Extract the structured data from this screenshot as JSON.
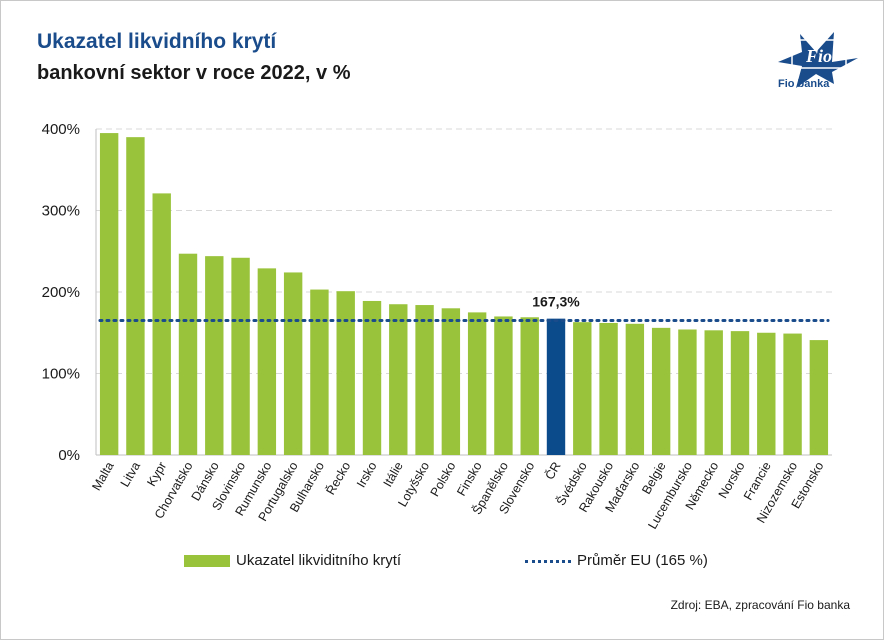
{
  "header": {
    "title": "Ukazatel likvidního krytí",
    "subtitle": "bankovní sektor v roce 2022, v %"
  },
  "logo": {
    "icon": "fio-logo-icon",
    "label": "Fio banka",
    "color": "#1a4c8c"
  },
  "legend": {
    "bar_label": "Ukazatel likviditního krytí",
    "line_label": "Průměr EU (165 %)"
  },
  "source": "Zdroj: EBA, zpracování Fio banka",
  "chart_data": {
    "type": "bar",
    "categories": [
      "Malta",
      "Litva",
      "Kypr",
      "Chorvatsko",
      "Dánsko",
      "Slovinsko",
      "Rumunsko",
      "Portugalsko",
      "Bulharsko",
      "Řecko",
      "Irsko",
      "Itálie",
      "Lotyšsko",
      "Polsko",
      "Finsko",
      "Španělsko",
      "Slovensko",
      "ČR",
      "Švédsko",
      "Rakousko",
      "Maďarsko",
      "Belgie",
      "Lucembursko",
      "Německo",
      "Norsko",
      "Francie",
      "Nizozemsko",
      "Estonsko"
    ],
    "series": [
      {
        "name": "Ukazatel likviditního krytí",
        "values": [
          395,
          390,
          321,
          247,
          244,
          242,
          229,
          224,
          203,
          201,
          189,
          185,
          184,
          180,
          175,
          170,
          169,
          167.3,
          163,
          162,
          161,
          156,
          154,
          153,
          152,
          150,
          149,
          141
        ]
      },
      {
        "name": "Průměr EU (165 %)",
        "type": "line",
        "style": "dotted",
        "value": 165
      }
    ],
    "highlight": {
      "category": "ČR",
      "label": "167,3%"
    },
    "colors": {
      "bar": "#9ac33c",
      "highlight": "#0b4a8b",
      "line": "#1a4c8c",
      "grid": "#d9d9d9"
    },
    "yticks": [
      "0%",
      "100%",
      "200%",
      "300%",
      "400%"
    ],
    "ylim": [
      0,
      400
    ],
    "grid": true,
    "legend_position": "bottom"
  }
}
